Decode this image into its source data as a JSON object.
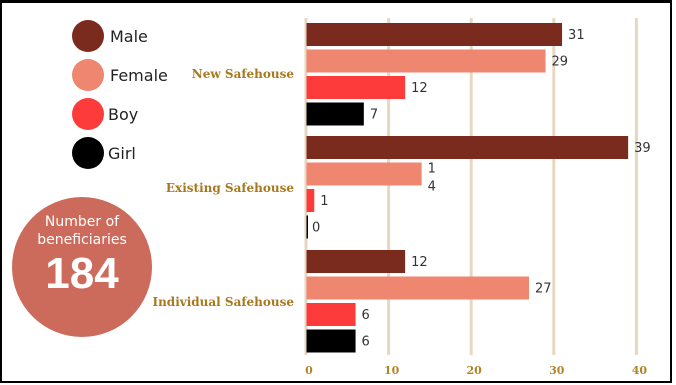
{
  "legend": [
    {
      "label": "Male",
      "color": "#7b2a1e"
    },
    {
      "label": "Female",
      "color": "#ef8670"
    },
    {
      "label": "Boy",
      "color": "#fe3b3b"
    },
    {
      "label": "Girl",
      "color": "#000000"
    }
  ],
  "badge": {
    "label": "Number of beneficiaries",
    "value": "184"
  },
  "chart_data": {
    "type": "bar",
    "orientation": "horizontal",
    "categories": [
      "New Safehouse",
      "Existing Safehouse",
      "Individual Safehouse"
    ],
    "series": [
      {
        "name": "Male",
        "values": [
          31,
          39,
          12
        ],
        "color": "#7b2a1e",
        "labels": [
          "31",
          "39",
          "12"
        ]
      },
      {
        "name": "Female",
        "values": [
          29,
          14,
          27
        ],
        "color": "#ef8670",
        "labels": [
          "29",
          "1\n4",
          "27"
        ]
      },
      {
        "name": "Boy",
        "values": [
          12,
          1,
          6
        ],
        "color": "#fe3b3b",
        "labels": [
          "12",
          "1",
          "6"
        ]
      },
      {
        "name": "Girl",
        "values": [
          7,
          0,
          6
        ],
        "color": "#000000",
        "labels": [
          "7",
          "0",
          "6"
        ]
      }
    ],
    "xlim": [
      0,
      40
    ],
    "xticks": [
      0,
      10,
      20,
      30,
      40
    ],
    "grid": true,
    "grid_color": "#e8d7c0",
    "tick_label_color": "#b2842a",
    "category_label_color": "#a8781e"
  }
}
